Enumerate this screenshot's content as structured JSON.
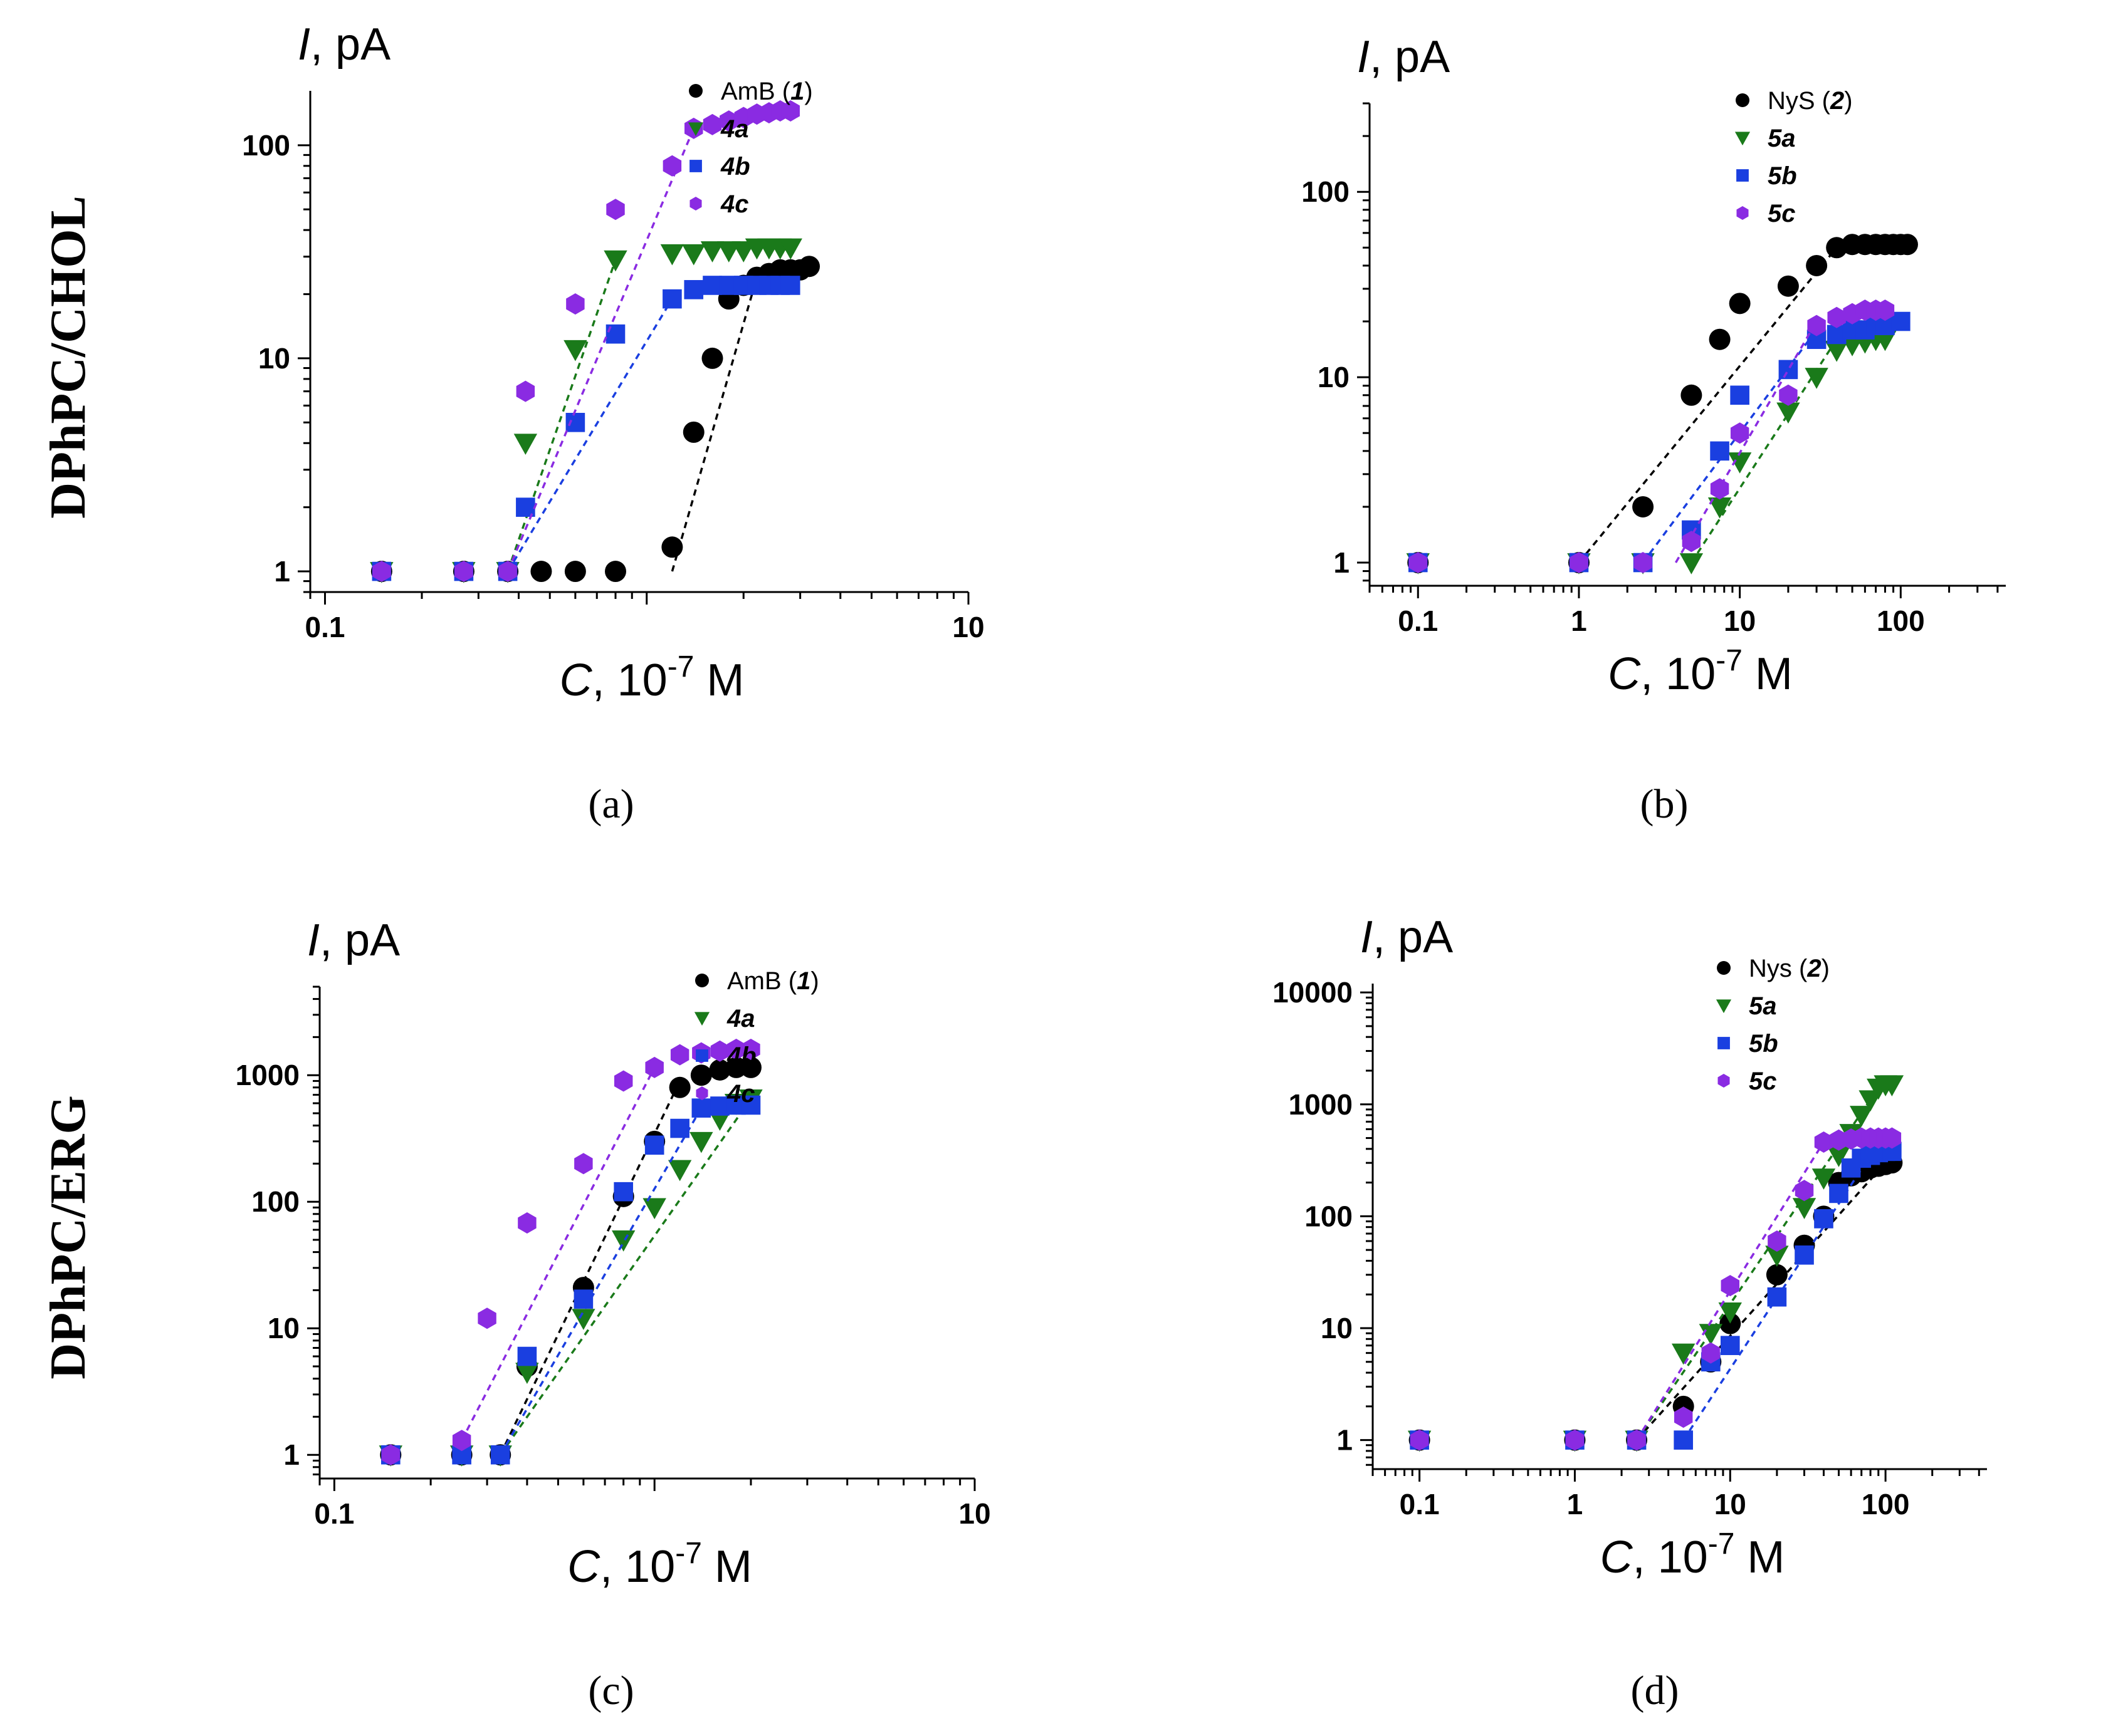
{
  "row_labels": [
    "DPhPC/CHOL",
    "DPhPC/ERG"
  ],
  "colors": {
    "black": "#000000",
    "green": "#1a7a1a",
    "blue": "#1a3fe0",
    "purple": "#8a2be2"
  },
  "chart_data": [
    {
      "type": "scatter",
      "caption": "(a)",
      "xscale": "log",
      "yscale": "log",
      "xlabel_italic": "C",
      "xlabel_rest": ", 10",
      "xlabel_exp": "-7",
      "xlabel_unit": " M",
      "ylabel_italic": "I",
      "ylabel_rest": ", pA",
      "xlim": [
        0.09,
        10
      ],
      "ylim": [
        0.8,
        180
      ],
      "xticks": [
        0.1,
        1,
        10
      ],
      "xtick_labels": [
        "0.1",
        "",
        "10"
      ],
      "yticks": [
        1,
        10,
        100
      ],
      "ytick_labels": [
        "1",
        "10",
        "100"
      ],
      "legend_position": "top-right",
      "series": [
        {
          "name": "AmB",
          "label_prefix": "AmB (",
          "label_bold": "1",
          "label_suffix": ")",
          "color": "black",
          "marker": "circle",
          "x": [
            0.15,
            0.27,
            0.37,
            0.47,
            0.6,
            0.8,
            1.2,
            1.4,
            1.6,
            1.8,
            2.0,
            2.2,
            2.4,
            2.6,
            2.8,
            3.0,
            3.2
          ],
          "y": [
            1,
            1,
            1,
            1,
            1,
            1,
            1.3,
            4.5,
            10,
            19,
            22,
            24,
            25,
            26,
            26,
            26,
            27
          ],
          "fit_x": [
            1.2,
            2.2
          ],
          "fit_y": [
            1.0,
            24
          ]
        },
        {
          "name": "4a",
          "label_prefix": "",
          "label_bold": "4a",
          "label_suffix": "",
          "color": "green",
          "marker": "triangle-down",
          "x": [
            0.15,
            0.27,
            0.37,
            0.42,
            0.6,
            0.8,
            1.2,
            1.4,
            1.6,
            1.8,
            2.0,
            2.2,
            2.4,
            2.6,
            2.8
          ],
          "y": [
            1,
            1,
            1,
            4,
            11,
            29,
            31,
            31,
            32,
            32,
            32,
            33,
            33,
            33,
            33
          ],
          "fit_x": [
            0.37,
            0.8
          ],
          "fit_y": [
            1.0,
            29
          ]
        },
        {
          "name": "4b",
          "label_prefix": "",
          "label_bold": "4b",
          "label_suffix": "",
          "color": "blue",
          "marker": "square",
          "x": [
            0.15,
            0.27,
            0.37,
            0.42,
            0.6,
            0.8,
            1.2,
            1.4,
            1.6,
            1.8,
            2.0,
            2.2,
            2.4,
            2.6,
            2.8
          ],
          "y": [
            1,
            1,
            1,
            2,
            5,
            13,
            19,
            21,
            22,
            22,
            22,
            22,
            22,
            22,
            22
          ],
          "fit_x": [
            0.37,
            1.2
          ],
          "fit_y": [
            1.0,
            19
          ]
        },
        {
          "name": "4c",
          "label_prefix": "",
          "label_bold": "4c",
          "label_suffix": "",
          "color": "purple",
          "marker": "hexagon",
          "x": [
            0.15,
            0.27,
            0.37,
            0.42,
            0.6,
            0.8,
            1.2,
            1.4,
            1.6,
            1.8,
            2.0,
            2.2,
            2.4,
            2.6,
            2.8
          ],
          "y": [
            1,
            1,
            1,
            7,
            18,
            50,
            80,
            120,
            125,
            130,
            135,
            140,
            142,
            145,
            145
          ],
          "fit_x": [
            0.37,
            1.4
          ],
          "fit_y": [
            1.0,
            120
          ]
        }
      ]
    },
    {
      "type": "scatter",
      "caption": "(b)",
      "xscale": "log",
      "yscale": "log",
      "xlabel_italic": "C",
      "xlabel_rest": ", 10",
      "xlabel_exp": "-7",
      "xlabel_unit": " M",
      "ylabel_italic": "I",
      "ylabel_rest": ", pA",
      "xlim": [
        0.05,
        450
      ],
      "ylim": [
        0.75,
        300
      ],
      "xticks": [
        0.1,
        1,
        10,
        100
      ],
      "xtick_labels": [
        "0.1",
        "1",
        "10",
        "100"
      ],
      "yticks": [
        1,
        10,
        100
      ],
      "ytick_labels": [
        "1",
        "10",
        "100"
      ],
      "legend_position": "top-right",
      "series": [
        {
          "name": "NyS",
          "label_prefix": "NyS (",
          "label_bold": "2",
          "label_suffix": ")",
          "color": "black",
          "marker": "circle",
          "x": [
            0.1,
            1,
            2.5,
            5,
            7.5,
            10,
            20,
            30,
            40,
            50,
            60,
            70,
            80,
            90,
            100,
            110
          ],
          "y": [
            1,
            1,
            2,
            8,
            16,
            25,
            31,
            40,
            50,
            52,
            52,
            52,
            52,
            52,
            52,
            52
          ],
          "fit_x": [
            1,
            40
          ],
          "fit_y": [
            1,
            50
          ]
        },
        {
          "name": "5a",
          "label_prefix": "",
          "label_bold": "5a",
          "label_suffix": "",
          "color": "green",
          "marker": "triangle-down",
          "x": [
            0.1,
            1,
            2.5,
            5,
            7.5,
            10,
            20,
            30,
            40,
            50,
            60,
            70,
            80
          ],
          "y": [
            1,
            1,
            1,
            1,
            2,
            3.5,
            6.5,
            10,
            14,
            15,
            15.5,
            16,
            16
          ],
          "fit_x": [
            5,
            40
          ],
          "fit_y": [
            1,
            16
          ]
        },
        {
          "name": "5b",
          "label_prefix": "",
          "label_bold": "5b",
          "label_suffix": "",
          "color": "blue",
          "marker": "square",
          "x": [
            0.1,
            1,
            2.5,
            5,
            7.5,
            10,
            20,
            30,
            40,
            50,
            60,
            70,
            80,
            100
          ],
          "y": [
            1,
            1,
            1,
            1.5,
            4,
            8,
            11,
            16,
            17,
            18,
            18,
            19,
            19,
            20
          ],
          "fit_x": [
            2.5,
            30
          ],
          "fit_y": [
            1,
            18
          ]
        },
        {
          "name": "5c",
          "label_prefix": "",
          "label_bold": "5c",
          "label_suffix": "",
          "color": "purple",
          "marker": "hexagon",
          "x": [
            0.1,
            1,
            2.5,
            5,
            7.5,
            10,
            20,
            30,
            40,
            50,
            60,
            70,
            80
          ],
          "y": [
            1,
            1,
            1,
            1.3,
            2.5,
            5,
            8,
            19,
            21,
            22,
            23,
            23,
            23
          ],
          "fit_x": [
            4,
            30
          ],
          "fit_y": [
            1,
            20
          ]
        }
      ]
    },
    {
      "type": "scatter",
      "caption": "(c)",
      "xscale": "log",
      "yscale": "log",
      "xlabel_italic": "C",
      "xlabel_rest": ", 10",
      "xlabel_exp": "-7",
      "xlabel_unit": " M",
      "ylabel_italic": "I",
      "ylabel_rest": ", pA",
      "xlim": [
        0.09,
        10
      ],
      "ylim": [
        0.65,
        5000
      ],
      "xticks": [
        0.1,
        1,
        10
      ],
      "xtick_labels": [
        "0.1",
        "",
        "10"
      ],
      "yticks": [
        1,
        10,
        100,
        1000
      ],
      "ytick_labels": [
        "1",
        "10",
        "100",
        "1000"
      ],
      "legend_position": "top-right",
      "series": [
        {
          "name": "AmB",
          "label_prefix": "AmB (",
          "label_bold": "1",
          "label_suffix": ")",
          "color": "black",
          "marker": "circle",
          "x": [
            0.15,
            0.25,
            0.33,
            0.4,
            0.6,
            0.8,
            1.0,
            1.2,
            1.4,
            1.6,
            1.8,
            2.0
          ],
          "y": [
            1,
            1,
            1,
            5,
            21,
            110,
            300,
            800,
            1000,
            1100,
            1150,
            1150
          ],
          "fit_x": [
            0.33,
            1.2
          ],
          "fit_y": [
            1,
            900
          ]
        },
        {
          "name": "4a",
          "label_prefix": "",
          "label_bold": "4a",
          "label_suffix": "",
          "color": "green",
          "marker": "triangle-down",
          "x": [
            0.15,
            0.25,
            0.33,
            0.4,
            0.6,
            0.8,
            1.0,
            1.2,
            1.4,
            1.6,
            1.8,
            2.0
          ],
          "y": [
            1,
            1,
            1,
            4.5,
            12,
            50,
            90,
            180,
            300,
            450,
            600,
            650
          ],
          "fit_x": [
            0.33,
            2.0
          ],
          "fit_y": [
            1,
            650
          ]
        },
        {
          "name": "4b",
          "label_prefix": "",
          "label_bold": "4b",
          "label_suffix": "",
          "color": "blue",
          "marker": "square",
          "x": [
            0.15,
            0.25,
            0.33,
            0.4,
            0.6,
            0.8,
            1.0,
            1.2,
            1.4,
            1.6,
            1.8,
            2.0
          ],
          "y": [
            1,
            1,
            1,
            6,
            17,
            120,
            280,
            380,
            550,
            570,
            580,
            580
          ],
          "fit_x": [
            0.33,
            1.4
          ],
          "fit_y": [
            1,
            550
          ]
        },
        {
          "name": "4c",
          "label_prefix": "",
          "label_bold": "4c",
          "label_suffix": "",
          "color": "purple",
          "marker": "hexagon",
          "x": [
            0.15,
            0.25,
            0.3,
            0.4,
            0.6,
            0.8,
            1.0,
            1.2,
            1.4,
            1.6,
            1.8,
            2.0
          ],
          "y": [
            1,
            1.3,
            12,
            68,
            200,
            900,
            1150,
            1450,
            1500,
            1550,
            1600,
            1600
          ],
          "fit_x": [
            0.25,
            1.0
          ],
          "fit_y": [
            1.3,
            1150
          ]
        }
      ]
    },
    {
      "type": "scatter",
      "caption": "(d)",
      "xscale": "log",
      "yscale": "log",
      "xlabel_italic": "C",
      "xlabel_rest": ", 10",
      "xlabel_exp": "-7",
      "xlabel_unit": " M",
      "ylabel_italic": "I",
      "ylabel_rest": ", pA",
      "xlim": [
        0.05,
        450
      ],
      "ylim": [
        0.55,
        12000
      ],
      "xticks": [
        0.1,
        1,
        10,
        100
      ],
      "xtick_labels": [
        "0.1",
        "1",
        "10",
        "100"
      ],
      "yticks": [
        1,
        10,
        100,
        1000,
        10000
      ],
      "ytick_labels": [
        "1",
        "10",
        "100",
        "1000",
        "10000"
      ],
      "legend_position": "top-right",
      "series": [
        {
          "name": "Nys",
          "label_prefix": "Nys (",
          "label_bold": "2",
          "label_suffix": ")",
          "color": "black",
          "marker": "circle",
          "x": [
            0.1,
            1,
            2.5,
            5,
            7.5,
            10,
            20,
            30,
            40,
            50,
            60,
            70,
            80,
            90,
            100,
            110
          ],
          "y": [
            1,
            1,
            1,
            2,
            5,
            11,
            30,
            55,
            100,
            200,
            230,
            250,
            270,
            280,
            290,
            300
          ],
          "fit_x": [
            2.5,
            100
          ],
          "fit_y": [
            1,
            300
          ]
        },
        {
          "name": "5a",
          "label_prefix": "",
          "label_bold": "5a",
          "label_suffix": "",
          "color": "green",
          "marker": "triangle-down",
          "x": [
            0.1,
            1,
            2.5,
            5,
            7.5,
            10,
            20,
            30,
            40,
            50,
            60,
            70,
            80,
            90,
            100,
            110
          ],
          "y": [
            1,
            1,
            1,
            6,
            9,
            14,
            45,
            120,
            220,
            350,
            550,
            800,
            1100,
            1400,
            1500,
            1500
          ],
          "fit_x": [
            2.5,
            80
          ],
          "fit_y": [
            1,
            1100
          ]
        },
        {
          "name": "5b",
          "label_prefix": "",
          "label_bold": "5b",
          "label_suffix": "",
          "color": "blue",
          "marker": "square",
          "x": [
            0.1,
            1,
            2.5,
            5,
            7.5,
            10,
            20,
            30,
            40,
            50,
            60,
            70,
            80,
            90,
            100,
            110
          ],
          "y": [
            1,
            1,
            1,
            1,
            5,
            7,
            19,
            45,
            95,
            160,
            270,
            330,
            350,
            370,
            380,
            380
          ],
          "fit_x": [
            5,
            80
          ],
          "fit_y": [
            1,
            350
          ]
        },
        {
          "name": "5c",
          "label_prefix": "",
          "label_bold": "5c",
          "label_suffix": "",
          "color": "purple",
          "marker": "hexagon",
          "x": [
            0.1,
            1,
            2.5,
            5,
            7.5,
            10,
            20,
            30,
            40,
            50,
            60,
            70,
            80,
            90,
            100,
            110
          ],
          "y": [
            1,
            1,
            1,
            1.6,
            6,
            24,
            60,
            170,
            460,
            480,
            490,
            500,
            500,
            500,
            500,
            500
          ],
          "fit_x": [
            2.5,
            40
          ],
          "fit_y": [
            1,
            460
          ]
        }
      ]
    }
  ]
}
